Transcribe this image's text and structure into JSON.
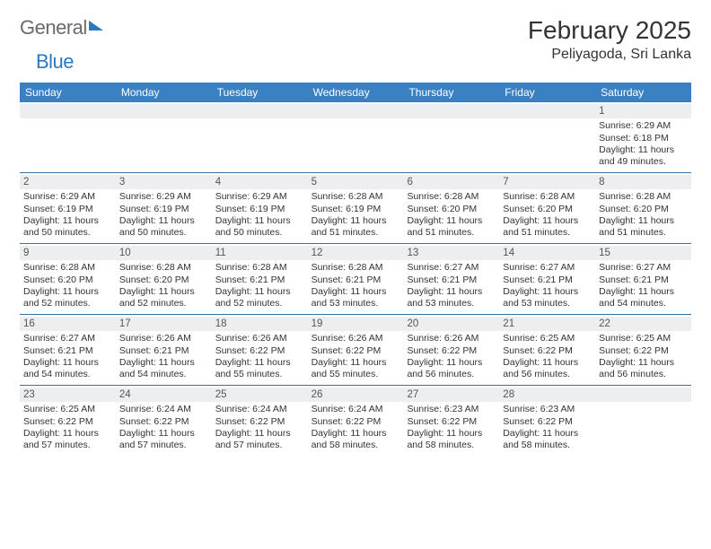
{
  "logo": {
    "text1": "General",
    "text2": "Blue"
  },
  "title": {
    "month": "February 2025",
    "location": "Peliyagoda, Sri Lanka"
  },
  "colors": {
    "header_bg": "#3a81c4",
    "header_text": "#ffffff",
    "daynum_bg": "#eceeef",
    "border": "#3a6fa0",
    "logo_gray": "#6a6a6a",
    "logo_blue": "#2b7ac1"
  },
  "day_headers": [
    "Sunday",
    "Monday",
    "Tuesday",
    "Wednesday",
    "Thursday",
    "Friday",
    "Saturday"
  ],
  "weeks": [
    [
      {
        "n": "",
        "sr": "",
        "ss": "",
        "dl": ""
      },
      {
        "n": "",
        "sr": "",
        "ss": "",
        "dl": ""
      },
      {
        "n": "",
        "sr": "",
        "ss": "",
        "dl": ""
      },
      {
        "n": "",
        "sr": "",
        "ss": "",
        "dl": ""
      },
      {
        "n": "",
        "sr": "",
        "ss": "",
        "dl": ""
      },
      {
        "n": "",
        "sr": "",
        "ss": "",
        "dl": ""
      },
      {
        "n": "1",
        "sr": "Sunrise: 6:29 AM",
        "ss": "Sunset: 6:18 PM",
        "dl": "Daylight: 11 hours and 49 minutes."
      }
    ],
    [
      {
        "n": "2",
        "sr": "Sunrise: 6:29 AM",
        "ss": "Sunset: 6:19 PM",
        "dl": "Daylight: 11 hours and 50 minutes."
      },
      {
        "n": "3",
        "sr": "Sunrise: 6:29 AM",
        "ss": "Sunset: 6:19 PM",
        "dl": "Daylight: 11 hours and 50 minutes."
      },
      {
        "n": "4",
        "sr": "Sunrise: 6:29 AM",
        "ss": "Sunset: 6:19 PM",
        "dl": "Daylight: 11 hours and 50 minutes."
      },
      {
        "n": "5",
        "sr": "Sunrise: 6:28 AM",
        "ss": "Sunset: 6:19 PM",
        "dl": "Daylight: 11 hours and 51 minutes."
      },
      {
        "n": "6",
        "sr": "Sunrise: 6:28 AM",
        "ss": "Sunset: 6:20 PM",
        "dl": "Daylight: 11 hours and 51 minutes."
      },
      {
        "n": "7",
        "sr": "Sunrise: 6:28 AM",
        "ss": "Sunset: 6:20 PM",
        "dl": "Daylight: 11 hours and 51 minutes."
      },
      {
        "n": "8",
        "sr": "Sunrise: 6:28 AM",
        "ss": "Sunset: 6:20 PM",
        "dl": "Daylight: 11 hours and 51 minutes."
      }
    ],
    [
      {
        "n": "9",
        "sr": "Sunrise: 6:28 AM",
        "ss": "Sunset: 6:20 PM",
        "dl": "Daylight: 11 hours and 52 minutes."
      },
      {
        "n": "10",
        "sr": "Sunrise: 6:28 AM",
        "ss": "Sunset: 6:20 PM",
        "dl": "Daylight: 11 hours and 52 minutes."
      },
      {
        "n": "11",
        "sr": "Sunrise: 6:28 AM",
        "ss": "Sunset: 6:21 PM",
        "dl": "Daylight: 11 hours and 52 minutes."
      },
      {
        "n": "12",
        "sr": "Sunrise: 6:28 AM",
        "ss": "Sunset: 6:21 PM",
        "dl": "Daylight: 11 hours and 53 minutes."
      },
      {
        "n": "13",
        "sr": "Sunrise: 6:27 AM",
        "ss": "Sunset: 6:21 PM",
        "dl": "Daylight: 11 hours and 53 minutes."
      },
      {
        "n": "14",
        "sr": "Sunrise: 6:27 AM",
        "ss": "Sunset: 6:21 PM",
        "dl": "Daylight: 11 hours and 53 minutes."
      },
      {
        "n": "15",
        "sr": "Sunrise: 6:27 AM",
        "ss": "Sunset: 6:21 PM",
        "dl": "Daylight: 11 hours and 54 minutes."
      }
    ],
    [
      {
        "n": "16",
        "sr": "Sunrise: 6:27 AM",
        "ss": "Sunset: 6:21 PM",
        "dl": "Daylight: 11 hours and 54 minutes."
      },
      {
        "n": "17",
        "sr": "Sunrise: 6:26 AM",
        "ss": "Sunset: 6:21 PM",
        "dl": "Daylight: 11 hours and 54 minutes."
      },
      {
        "n": "18",
        "sr": "Sunrise: 6:26 AM",
        "ss": "Sunset: 6:22 PM",
        "dl": "Daylight: 11 hours and 55 minutes."
      },
      {
        "n": "19",
        "sr": "Sunrise: 6:26 AM",
        "ss": "Sunset: 6:22 PM",
        "dl": "Daylight: 11 hours and 55 minutes."
      },
      {
        "n": "20",
        "sr": "Sunrise: 6:26 AM",
        "ss": "Sunset: 6:22 PM",
        "dl": "Daylight: 11 hours and 56 minutes."
      },
      {
        "n": "21",
        "sr": "Sunrise: 6:25 AM",
        "ss": "Sunset: 6:22 PM",
        "dl": "Daylight: 11 hours and 56 minutes."
      },
      {
        "n": "22",
        "sr": "Sunrise: 6:25 AM",
        "ss": "Sunset: 6:22 PM",
        "dl": "Daylight: 11 hours and 56 minutes."
      }
    ],
    [
      {
        "n": "23",
        "sr": "Sunrise: 6:25 AM",
        "ss": "Sunset: 6:22 PM",
        "dl": "Daylight: 11 hours and 57 minutes."
      },
      {
        "n": "24",
        "sr": "Sunrise: 6:24 AM",
        "ss": "Sunset: 6:22 PM",
        "dl": "Daylight: 11 hours and 57 minutes."
      },
      {
        "n": "25",
        "sr": "Sunrise: 6:24 AM",
        "ss": "Sunset: 6:22 PM",
        "dl": "Daylight: 11 hours and 57 minutes."
      },
      {
        "n": "26",
        "sr": "Sunrise: 6:24 AM",
        "ss": "Sunset: 6:22 PM",
        "dl": "Daylight: 11 hours and 58 minutes."
      },
      {
        "n": "27",
        "sr": "Sunrise: 6:23 AM",
        "ss": "Sunset: 6:22 PM",
        "dl": "Daylight: 11 hours and 58 minutes."
      },
      {
        "n": "28",
        "sr": "Sunrise: 6:23 AM",
        "ss": "Sunset: 6:22 PM",
        "dl": "Daylight: 11 hours and 58 minutes."
      },
      {
        "n": "",
        "sr": "",
        "ss": "",
        "dl": ""
      }
    ]
  ]
}
